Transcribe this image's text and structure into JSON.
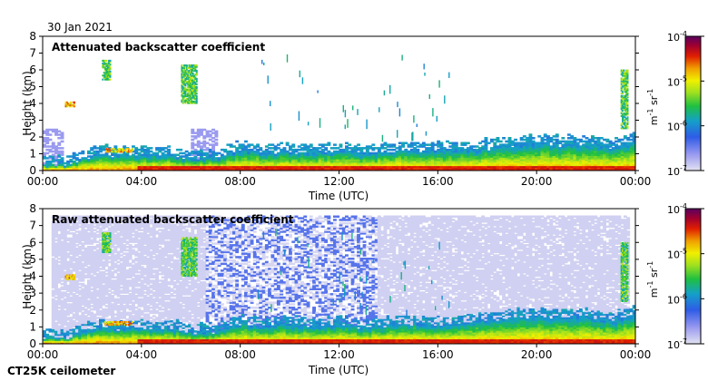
{
  "figure": {
    "date": "30 Jan 2021",
    "instrument": "CT25K ceilometer"
  },
  "chart_data": [
    {
      "type": "heatmap",
      "title": "Attenuated backscatter coefficient",
      "xlabel": "Time (UTC)",
      "ylabel": "Height (km)",
      "xlim": [
        0,
        24
      ],
      "ylim": [
        0,
        8
      ],
      "x_ticks": [
        "00:00",
        "04:00",
        "08:00",
        "12:00",
        "16:00",
        "20:00",
        "00:00"
      ],
      "y_ticks": [
        "0",
        "1",
        "2",
        "3",
        "4",
        "5",
        "6",
        "7",
        "8"
      ],
      "colorbar": {
        "label_main": "m",
        "label_sup1": "-1",
        "label_mid": " sr",
        "label_sup2": "-1",
        "scale": "log",
        "range": [
          1e-07,
          0.0001
        ],
        "ticks": [
          {
            "base": "10",
            "exp": "-4"
          },
          {
            "base": "10",
            "exp": "-5"
          },
          {
            "base": "10",
            "exp": "-6"
          },
          {
            "base": "10",
            "exp": "-7"
          }
        ]
      },
      "features": {
        "boundary_layer_top_km": [
          [
            0,
            0.3
          ],
          [
            1,
            0.35
          ],
          [
            2,
            0.9
          ],
          [
            3,
            0.9
          ],
          [
            4,
            0.9
          ],
          [
            5,
            0.9
          ],
          [
            6,
            0.6
          ],
          [
            7,
            0.7
          ],
          [
            8,
            1.2
          ],
          [
            9,
            1.0
          ],
          [
            10,
            1.1
          ],
          [
            11,
            1.0
          ],
          [
            12,
            1.1
          ],
          [
            13,
            0.9
          ],
          [
            14,
            1.1
          ],
          [
            15,
            1.2
          ],
          [
            16,
            1.1
          ],
          [
            17,
            1.2
          ],
          [
            18,
            1.3
          ],
          [
            19,
            1.5
          ],
          [
            20,
            1.6
          ],
          [
            21,
            1.5
          ],
          [
            22,
            1.6
          ],
          [
            23,
            1.3
          ],
          [
            24,
            1.7
          ]
        ],
        "aerosol_layers": [
          {
            "t0": 0.9,
            "t1": 1.3,
            "h0": 3.8,
            "h1": 4.1,
            "level": "high"
          },
          {
            "t0": 2.4,
            "t1": 2.7,
            "h0": 5.4,
            "h1": 6.6,
            "level": "mid"
          },
          {
            "t0": 5.6,
            "t1": 6.2,
            "h0": 4.0,
            "h1": 6.3,
            "level": "mid"
          },
          {
            "t0": 2.5,
            "t1": 3.6,
            "h0": 1.1,
            "h1": 1.3,
            "level": "high"
          },
          {
            "t0": 23.4,
            "t1": 23.7,
            "h0": 2.5,
            "h1": 6.0,
            "level": "mid"
          }
        ]
      }
    },
    {
      "type": "heatmap",
      "title": "Raw attenuated backscatter coefficient",
      "xlabel": "Time (UTC)",
      "ylabel": "Height (km)",
      "xlim": [
        0,
        24
      ],
      "ylim": [
        0,
        8
      ],
      "x_ticks": [
        "00:00",
        "04:00",
        "08:00",
        "12:00",
        "16:00",
        "20:00",
        "00:00"
      ],
      "y_ticks": [
        "0",
        "1",
        "2",
        "3",
        "4",
        "5",
        "6",
        "7",
        "8"
      ],
      "colorbar": {
        "label_main": "m",
        "label_sup1": "-1",
        "label_mid": " sr",
        "label_sup2": "-1",
        "scale": "log",
        "range": [
          1e-07,
          0.0001
        ],
        "ticks": [
          {
            "base": "10",
            "exp": "-4"
          },
          {
            "base": "10",
            "exp": "-5"
          },
          {
            "base": "10",
            "exp": "-6"
          },
          {
            "base": "10",
            "exp": "-7"
          }
        ]
      },
      "features": {
        "noise_top_km": 7.5,
        "noisy_period_utc": [
          6.5,
          13.5
        ]
      }
    }
  ]
}
